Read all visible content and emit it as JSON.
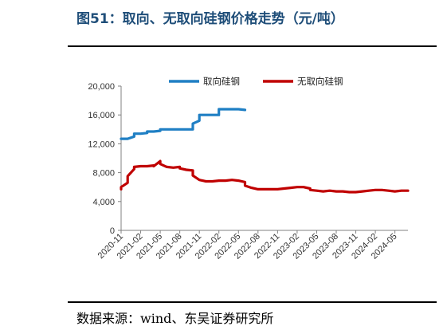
{
  "header": {
    "title": "图51：取向、无取向硅钢价格走势（元/吨）"
  },
  "footer": {
    "source": "数据来源：wind、东吴证券研究所"
  },
  "chart_data": {
    "type": "line",
    "ylim": [
      0,
      20000
    ],
    "yticks": [
      0,
      4000,
      8000,
      12000,
      16000,
      20000
    ],
    "ytick_labels": [
      "0",
      "4,000",
      "8,000",
      "12,000",
      "16,000",
      "20,000"
    ],
    "x_range": [
      "2020-11",
      "2024-07"
    ],
    "xtick_labels": [
      "2020-11",
      "2021-02",
      "2021-05",
      "2021-08",
      "2021-11",
      "2022-02",
      "2022-05",
      "2022-08",
      "2022-11",
      "2023-02",
      "2023-05",
      "2023-08",
      "2023-11",
      "2024-02",
      "2024-05"
    ],
    "grid": false,
    "legend_position": "top",
    "series": [
      {
        "name": "取向硅钢",
        "color": "#1f7fc4",
        "points": [
          [
            "2020-11",
            12700
          ],
          [
            "2020-12",
            12700
          ],
          [
            "2021-01",
            13000
          ],
          [
            "2021-01",
            13400
          ],
          [
            "2021-02",
            13400
          ],
          [
            "2021-03",
            13500
          ],
          [
            "2021-03",
            13700
          ],
          [
            "2021-04",
            13700
          ],
          [
            "2021-05",
            13800
          ],
          [
            "2021-05",
            14000
          ],
          [
            "2021-06",
            14000
          ],
          [
            "2021-07",
            14000
          ],
          [
            "2021-08",
            14000
          ],
          [
            "2021-09",
            14000
          ],
          [
            "2021-10",
            14000
          ],
          [
            "2021-10",
            14800
          ],
          [
            "2021-11",
            15200
          ],
          [
            "2021-11",
            16000
          ],
          [
            "2021-12",
            16000
          ],
          [
            "2022-01",
            16000
          ],
          [
            "2022-02",
            16000
          ],
          [
            "2022-02",
            16800
          ],
          [
            "2022-03",
            16800
          ],
          [
            "2022-04",
            16800
          ],
          [
            "2022-05",
            16800
          ],
          [
            "2022-06",
            16700
          ]
        ]
      },
      {
        "name": "无取向硅钢",
        "color": "#c00000",
        "points": [
          [
            "2020-11",
            5700
          ],
          [
            "2020-11",
            6000
          ],
          [
            "2020-12",
            6600
          ],
          [
            "2020-12",
            7500
          ],
          [
            "2021-01",
            8500
          ],
          [
            "2021-01",
            8800
          ],
          [
            "2021-02",
            8900
          ],
          [
            "2021-03",
            8900
          ],
          [
            "2021-04",
            9000
          ],
          [
            "2021-04",
            8900
          ],
          [
            "2021-05",
            9600
          ],
          [
            "2021-05",
            9200
          ],
          [
            "2021-06",
            8800
          ],
          [
            "2021-07",
            8700
          ],
          [
            "2021-08",
            8800
          ],
          [
            "2021-08",
            8600
          ],
          [
            "2021-09",
            8400
          ],
          [
            "2021-10",
            8300
          ],
          [
            "2021-10",
            7600
          ],
          [
            "2021-11",
            7000
          ],
          [
            "2021-12",
            6800
          ],
          [
            "2022-01",
            6800
          ],
          [
            "2022-02",
            6900
          ],
          [
            "2022-03",
            6900
          ],
          [
            "2022-04",
            7000
          ],
          [
            "2022-05",
            6900
          ],
          [
            "2022-06",
            6700
          ],
          [
            "2022-06",
            6200
          ],
          [
            "2022-07",
            5900
          ],
          [
            "2022-08",
            5700
          ],
          [
            "2022-09",
            5700
          ],
          [
            "2022-10",
            5700
          ],
          [
            "2022-11",
            5700
          ],
          [
            "2022-12",
            5800
          ],
          [
            "2023-01",
            5900
          ],
          [
            "2023-02",
            6000
          ],
          [
            "2023-03",
            6000
          ],
          [
            "2023-04",
            5800
          ],
          [
            "2023-04",
            5600
          ],
          [
            "2023-05",
            5500
          ],
          [
            "2023-06",
            5400
          ],
          [
            "2023-07",
            5500
          ],
          [
            "2023-08",
            5400
          ],
          [
            "2023-09",
            5400
          ],
          [
            "2023-10",
            5300
          ],
          [
            "2023-11",
            5300
          ],
          [
            "2023-12",
            5400
          ],
          [
            "2024-01",
            5500
          ],
          [
            "2024-02",
            5600
          ],
          [
            "2024-03",
            5600
          ],
          [
            "2024-04",
            5500
          ],
          [
            "2024-05",
            5400
          ],
          [
            "2024-06",
            5500
          ],
          [
            "2024-07",
            5500
          ]
        ]
      }
    ]
  }
}
